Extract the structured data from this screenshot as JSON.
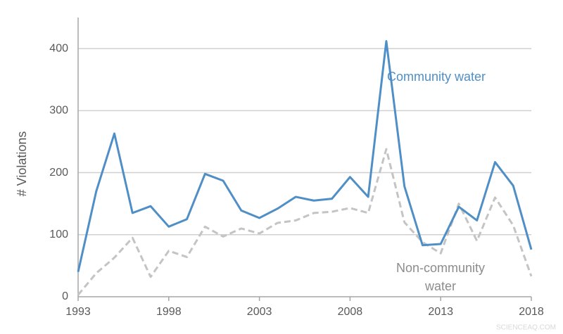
{
  "chart_data": {
    "type": "line",
    "y_label": "# Violations",
    "x": [
      1993,
      1994,
      1995,
      1996,
      1997,
      1998,
      1999,
      2000,
      2001,
      2002,
      2003,
      2004,
      2005,
      2006,
      2007,
      2008,
      2009,
      2010,
      2011,
      2012,
      2013,
      2014,
      2015,
      2016,
      2017,
      2018
    ],
    "series": [
      {
        "name": "Community water",
        "color": "#4f8fc6",
        "dashed": false,
        "values": [
          40,
          170,
          263,
          135,
          146,
          113,
          125,
          198,
          187,
          139,
          127,
          142,
          161,
          155,
          158,
          193,
          161,
          412,
          178,
          83,
          85,
          145,
          123,
          217,
          179,
          76
        ]
      },
      {
        "name": "Non-community water",
        "color": "#c4c4c4",
        "dashed": true,
        "values": [
          3,
          38,
          63,
          95,
          32,
          74,
          64,
          113,
          97,
          110,
          102,
          119,
          123,
          135,
          137,
          143,
          135,
          238,
          120,
          88,
          70,
          150,
          90,
          160,
          115,
          33
        ]
      }
    ],
    "xlim": [
      1993,
      2018
    ],
    "xticks": [
      1993,
      1998,
      2003,
      2008,
      2013,
      2018
    ],
    "ylim": [
      0,
      450
    ],
    "yticks": [
      0,
      100,
      200,
      300,
      400
    ],
    "grid": true,
    "watermark": "SCIENCEAQ.COM"
  }
}
